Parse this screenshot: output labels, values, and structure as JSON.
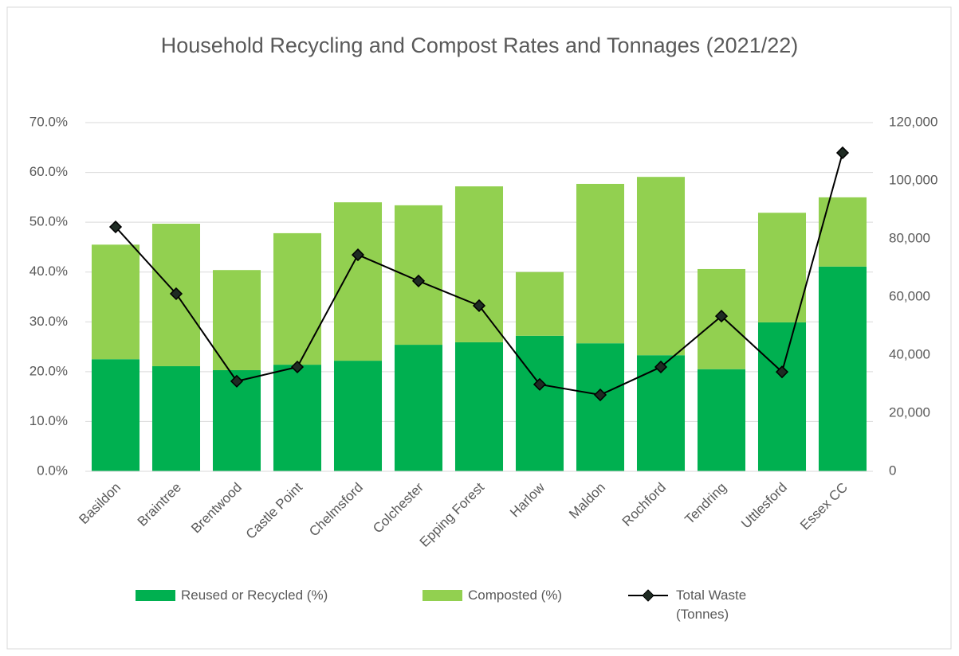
{
  "chart_data": {
    "type": "bar",
    "stacked": true,
    "title": "Household Recycling and Compost Rates and Tonnages (2021/22)",
    "categories": [
      "Basildon",
      "Braintree",
      "Brentwood",
      "Castle Point",
      "Chelmsford",
      "Colchester",
      "Epping Forest",
      "Harlow",
      "Maldon",
      "Rochford",
      "Tendring",
      "Uttlesford",
      "Essex CC"
    ],
    "series": [
      {
        "name": "Reused or Recycled (%)",
        "type": "bar",
        "color": "#00b050",
        "values": [
          22.5,
          21.1,
          20.3,
          21.4,
          22.2,
          25.4,
          25.9,
          27.2,
          25.7,
          23.3,
          20.5,
          29.9,
          41.1
        ]
      },
      {
        "name": "Composted (%)",
        "type": "bar",
        "color": "#92d050",
        "values": [
          23.0,
          28.6,
          20.1,
          26.4,
          31.8,
          28.0,
          31.3,
          12.8,
          32.0,
          35.8,
          20.1,
          22.0,
          13.9
        ]
      },
      {
        "name": "Total Waste (Tonnes)",
        "type": "line",
        "axis": "y2",
        "color": "#000000",
        "values": [
          84100,
          61100,
          31000,
          35900,
          74500,
          65500,
          57000,
          29900,
          26300,
          35900,
          53400,
          34200,
          109600
        ]
      }
    ],
    "ylim": [
      0,
      70
    ],
    "yticks": [
      {
        "value": 0,
        "label": "0.0%"
      },
      {
        "value": 10,
        "label": "10.0%"
      },
      {
        "value": 20,
        "label": "20.0%"
      },
      {
        "value": 30,
        "label": "30.0%"
      },
      {
        "value": 40,
        "label": "40.0%"
      },
      {
        "value": 50,
        "label": "50.0%"
      },
      {
        "value": 60,
        "label": "60.0%"
      },
      {
        "value": 70,
        "label": "70.0%"
      }
    ],
    "y2lim": [
      0,
      120000
    ],
    "y2ticks": [
      0,
      {
        "value": 20000,
        "label": "20,000"
      },
      {
        "value": 40000,
        "label": "40,000"
      },
      {
        "value": 60000,
        "label": "60,000"
      },
      {
        "value": 80000,
        "label": "80,000"
      },
      {
        "value": 100000,
        "label": "100,000"
      },
      {
        "value": 120000,
        "label": "120,000"
      }
    ],
    "grid": true,
    "legend": "bottom"
  }
}
